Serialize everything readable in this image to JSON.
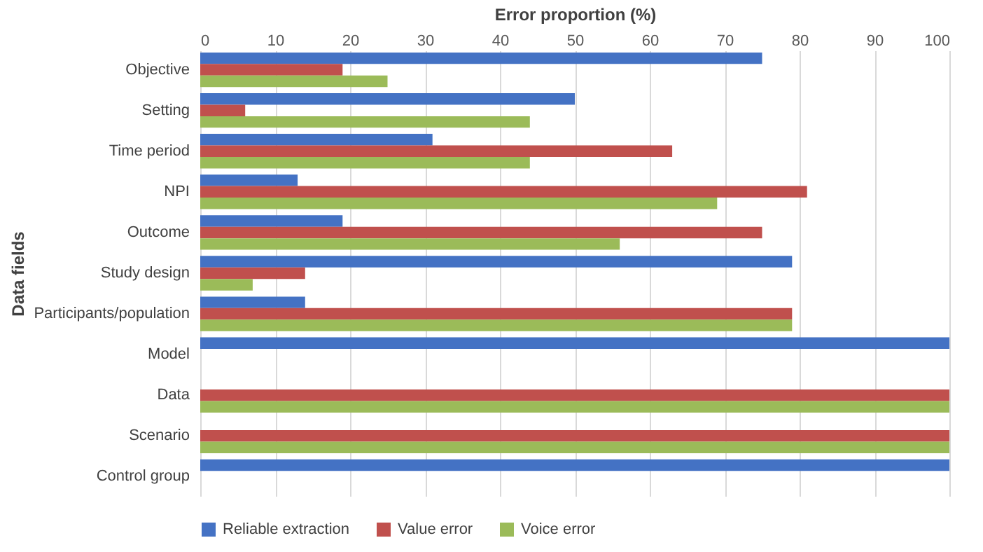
{
  "chart_data": {
    "type": "bar",
    "orientation": "horizontal",
    "xlabel": "Error proportion (%)",
    "ylabel": "Data fields",
    "categories": [
      "Objective",
      "Setting",
      "Time period",
      "NPI",
      "Outcome",
      "Study design",
      "Participants/population",
      "Model",
      "Data",
      "Scenario",
      "Control group"
    ],
    "series": [
      {
        "name": "Reliable extraction",
        "color": "#4472c4",
        "values": [
          75,
          50,
          31,
          13,
          19,
          79,
          14,
          100,
          null,
          null,
          100
        ]
      },
      {
        "name": "Value error",
        "color": "#c0504d",
        "values": [
          19,
          6,
          63,
          81,
          75,
          14,
          79,
          null,
          100,
          100,
          null
        ]
      },
      {
        "name": "Voice error",
        "color": "#9bbb59",
        "values": [
          25,
          44,
          44,
          69,
          56,
          7,
          79,
          null,
          100,
          100,
          null
        ]
      }
    ],
    "xlim": [
      0,
      100
    ],
    "xticks": [
      0,
      10,
      20,
      30,
      40,
      50,
      60,
      70,
      80,
      90,
      100
    ],
    "grid": "x",
    "legend": "bottom"
  }
}
